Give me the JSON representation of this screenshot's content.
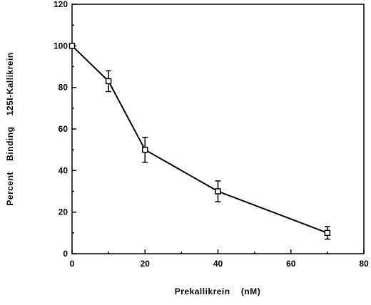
{
  "chart_data": {
    "type": "line",
    "title": "",
    "xlabel": "Prekallikrein    (nM)",
    "ylabel": "Percent    Binding    125I-Kallikrein",
    "xlim": [
      0,
      80
    ],
    "ylim": [
      0,
      120
    ],
    "x_ticks": [
      0,
      20,
      40,
      60,
      80
    ],
    "y_ticks": [
      0,
      20,
      40,
      60,
      80,
      100,
      120
    ],
    "grid": false,
    "legend": "none",
    "marker": "open-square",
    "series": [
      {
        "x": [
          0,
          10,
          20,
          40,
          70
        ],
        "y": [
          100,
          83,
          50,
          30,
          10
        ],
        "error": [
          0,
          5,
          6,
          5,
          3
        ]
      }
    ]
  }
}
